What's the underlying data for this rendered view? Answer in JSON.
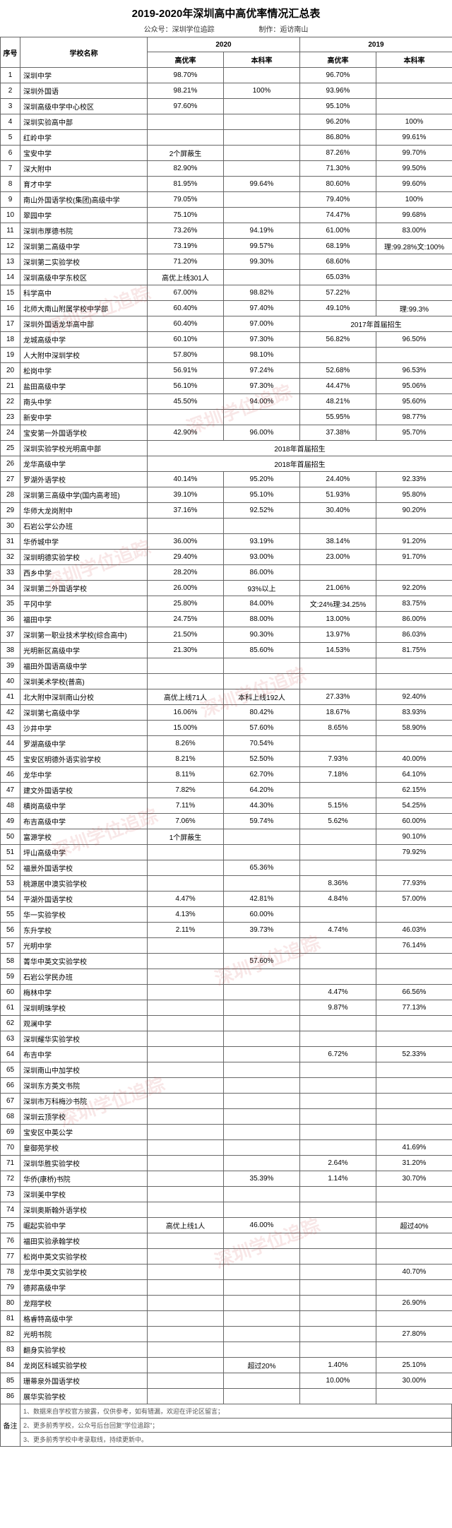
{
  "title": "2019-2020年深圳高中高优率情况汇总表",
  "subline": {
    "left": "公众号：深圳学位追踪",
    "right": "制作：逅访南山"
  },
  "headers": {
    "seq": "序号",
    "school": "学校名称",
    "y2020": "2020",
    "y2019": "2019",
    "gyl": "高优率",
    "bkl": "本科率"
  },
  "footer": {
    "label": "备注",
    "notes": [
      "1、数据来自学校官方披露，仅供参考，如有错漏，欢迎在评论区留言；",
      "2、更多前秀学校，公众号后台回复\"学位追踪\"；",
      "3、更多前秀学校中考录取线，持续更新中。"
    ]
  },
  "watermarks": [
    "深圳学位追踪",
    "深圳学位追踪",
    "深圳学位追踪",
    "深圳学位追踪",
    "深圳学位追踪",
    "深圳学位追踪",
    "深圳学位追踪",
    "深圳学位追踪"
  ],
  "rows": [
    {
      "n": 1,
      "s": "深圳中学",
      "a": "98.70%",
      "b": "",
      "c": "96.70%",
      "d": ""
    },
    {
      "n": 2,
      "s": "深圳外国语",
      "a": "98.21%",
      "b": "100%",
      "c": "93.96%",
      "d": ""
    },
    {
      "n": 3,
      "s": "深圳高级中学中心校区",
      "a": "97.60%",
      "b": "",
      "c": "95.10%",
      "d": ""
    },
    {
      "n": 4,
      "s": "深圳实验高中部",
      "a": "",
      "b": "",
      "c": "96.20%",
      "d": "100%"
    },
    {
      "n": 5,
      "s": "红岭中学",
      "a": "",
      "b": "",
      "c": "86.80%",
      "d": "99.61%"
    },
    {
      "n": 6,
      "s": "宝安中学",
      "a": "2个屏蔽生",
      "b": "",
      "c": "87.26%",
      "d": "99.70%"
    },
    {
      "n": 7,
      "s": "深大附中",
      "a": "82.90%",
      "b": "",
      "c": "71.30%",
      "d": "99.50%"
    },
    {
      "n": 8,
      "s": "育才中学",
      "a": "81.95%",
      "b": "99.64%",
      "c": "80.60%",
      "d": "99.60%"
    },
    {
      "n": 9,
      "s": "南山外国语学校(集团)高级中学",
      "a": "79.05%",
      "b": "",
      "c": "79.40%",
      "d": "100%"
    },
    {
      "n": 10,
      "s": "翠园中学",
      "a": "75.10%",
      "b": "",
      "c": "74.47%",
      "d": "99.68%"
    },
    {
      "n": 11,
      "s": "深圳市厚德书院",
      "a": "73.26%",
      "b": "94.19%",
      "c": "61.00%",
      "d": "83.00%"
    },
    {
      "n": 12,
      "s": "深圳第二高级中学",
      "a": "73.19%",
      "b": "99.57%",
      "c": "68.19%",
      "d": "理:99.28%文:100%"
    },
    {
      "n": 13,
      "s": "深圳第二实验学校",
      "a": "71.20%",
      "b": "99.30%",
      "c": "68.60%",
      "d": ""
    },
    {
      "n": 14,
      "s": "深圳高级中学东校区",
      "a": "高优上线301人",
      "b": "",
      "c": "65.03%",
      "d": ""
    },
    {
      "n": 15,
      "s": "科学高中",
      "a": "67.00%",
      "b": "98.82%",
      "c": "57.22%",
      "d": ""
    },
    {
      "n": 16,
      "s": "北师大南山附属学校中学部",
      "a": "60.40%",
      "b": "97.40%",
      "c": "49.10%",
      "d": "理:99.3%"
    },
    {
      "n": 17,
      "s": "深圳外国语龙华高中部",
      "a": "60.40%",
      "b": "97.00%",
      "c": "2017年首届招生",
      "d": "",
      "merge_cd": true
    },
    {
      "n": 18,
      "s": "龙城高级中学",
      "a": "60.10%",
      "b": "97.30%",
      "c": "56.82%",
      "d": "96.50%"
    },
    {
      "n": 19,
      "s": "人大附中深圳学校",
      "a": "57.80%",
      "b": "98.10%",
      "c": "",
      "d": ""
    },
    {
      "n": 20,
      "s": "松岗中学",
      "a": "56.91%",
      "b": "97.24%",
      "c": "52.68%",
      "d": "96.53%"
    },
    {
      "n": 21,
      "s": "盐田高级中学",
      "a": "56.10%",
      "b": "97.30%",
      "c": "44.47%",
      "d": "95.06%"
    },
    {
      "n": 22,
      "s": "南头中学",
      "a": "45.50%",
      "b": "94.00%",
      "c": "48.21%",
      "d": "95.60%"
    },
    {
      "n": 23,
      "s": "新安中学",
      "a": "",
      "b": "",
      "c": "55.95%",
      "d": "98.77%"
    },
    {
      "n": 24,
      "s": "宝安第一外国语学校",
      "a": "42.90%",
      "b": "96.00%",
      "c": "37.38%",
      "d": "95.70%"
    },
    {
      "n": 25,
      "s": "深圳实验学校光明高中部",
      "a": "2018年首届招生",
      "b": "",
      "c": "",
      "d": "",
      "merge_all": true
    },
    {
      "n": 26,
      "s": "龙华高级中学",
      "a": "2018年首届招生",
      "b": "",
      "c": "",
      "d": "",
      "merge_all": true
    },
    {
      "n": 27,
      "s": "罗湖外语学校",
      "a": "40.14%",
      "b": "95.20%",
      "c": "24.40%",
      "d": "92.33%"
    },
    {
      "n": 28,
      "s": "深圳第三高级中学(国内高考班)",
      "a": "39.10%",
      "b": "95.10%",
      "c": "51.93%",
      "d": "95.80%"
    },
    {
      "n": 29,
      "s": "华师大龙岗附中",
      "a": "37.16%",
      "b": "92.52%",
      "c": "30.40%",
      "d": "90.20%"
    },
    {
      "n": 30,
      "s": "石岩公学公办班",
      "a": "",
      "b": "",
      "c": "",
      "d": ""
    },
    {
      "n": 31,
      "s": "华侨城中学",
      "a": "36.00%",
      "b": "93.19%",
      "c": "38.14%",
      "d": "91.20%"
    },
    {
      "n": 32,
      "s": "深圳明德实验学校",
      "a": "29.40%",
      "b": "93.00%",
      "c": "23.00%",
      "d": "91.70%"
    },
    {
      "n": 33,
      "s": "西乡中学",
      "a": "28.20%",
      "b": "86.00%",
      "c": "",
      "d": ""
    },
    {
      "n": 34,
      "s": "深圳第二外国语学校",
      "a": "26.00%",
      "b": "93%以上",
      "c": "21.06%",
      "d": "92.20%"
    },
    {
      "n": 35,
      "s": "平冈中学",
      "a": "25.80%",
      "b": "84.00%",
      "c": "文:24%理:34.25%",
      "d": "83.75%"
    },
    {
      "n": 36,
      "s": "福田中学",
      "a": "24.75%",
      "b": "88.00%",
      "c": "13.00%",
      "d": "86.00%"
    },
    {
      "n": 37,
      "s": "深圳第一职业技术学校(综合高中)",
      "a": "21.50%",
      "b": "90.30%",
      "c": "13.97%",
      "d": "86.03%"
    },
    {
      "n": 38,
      "s": "光明新区高级中学",
      "a": "21.30%",
      "b": "85.60%",
      "c": "14.53%",
      "d": "81.75%"
    },
    {
      "n": 39,
      "s": "福田外国语高级中学",
      "a": "",
      "b": "",
      "c": "",
      "d": ""
    },
    {
      "n": 40,
      "s": "深圳美术学校(普高)",
      "a": "",
      "b": "",
      "c": "",
      "d": ""
    },
    {
      "n": 41,
      "s": "北大附中深圳南山分校",
      "a": "高优上线71人",
      "b": "本科上线192人",
      "c": "27.33%",
      "d": "92.40%"
    },
    {
      "n": 42,
      "s": "深圳第七高级中学",
      "a": "16.06%",
      "b": "80.42%",
      "c": "18.67%",
      "d": "83.93%"
    },
    {
      "n": 43,
      "s": "沙井中学",
      "a": "15.00%",
      "b": "57.60%",
      "c": "8.65%",
      "d": "58.90%"
    },
    {
      "n": 44,
      "s": "罗湖高级中学",
      "a": "8.26%",
      "b": "70.54%",
      "c": "",
      "d": ""
    },
    {
      "n": 45,
      "s": "宝安区明德外语实验学校",
      "a": "8.21%",
      "b": "52.50%",
      "c": "7.93%",
      "d": "40.00%"
    },
    {
      "n": 46,
      "s": "龙华中学",
      "a": "8.11%",
      "b": "62.70%",
      "c": "7.18%",
      "d": "64.10%"
    },
    {
      "n": 47,
      "s": "建文外国语学校",
      "a": "7.82%",
      "b": "64.20%",
      "c": "",
      "d": "62.15%"
    },
    {
      "n": 48,
      "s": "横岗高级中学",
      "a": "7.11%",
      "b": "44.30%",
      "c": "5.15%",
      "d": "54.25%"
    },
    {
      "n": 49,
      "s": "布吉高级中学",
      "a": "7.06%",
      "b": "59.74%",
      "c": "5.62%",
      "d": "60.00%"
    },
    {
      "n": 50,
      "s": "富源学校",
      "a": "1个屏蔽生",
      "b": "",
      "c": "",
      "d": "90.10%"
    },
    {
      "n": 51,
      "s": "坪山高级中学",
      "a": "",
      "b": "",
      "c": "",
      "d": "79.92%"
    },
    {
      "n": 52,
      "s": "福景外国语学校",
      "a": "",
      "b": "65.36%",
      "c": "",
      "d": ""
    },
    {
      "n": 53,
      "s": "桃源居中澳实验学校",
      "a": "",
      "b": "",
      "c": "8.36%",
      "d": "77.93%"
    },
    {
      "n": 54,
      "s": "平湖外国语学校",
      "a": "4.47%",
      "b": "42.81%",
      "c": "4.84%",
      "d": "57.00%"
    },
    {
      "n": 55,
      "s": "华一实验学校",
      "a": "4.13%",
      "b": "60.00%",
      "c": "",
      "d": ""
    },
    {
      "n": 56,
      "s": "东升学校",
      "a": "2.11%",
      "b": "39.73%",
      "c": "4.74%",
      "d": "46.03%"
    },
    {
      "n": 57,
      "s": "光明中学",
      "a": "",
      "b": "",
      "c": "",
      "d": "76.14%"
    },
    {
      "n": 58,
      "s": "菁华中英文实验学校",
      "a": "",
      "b": "57.60%",
      "c": "",
      "d": ""
    },
    {
      "n": 59,
      "s": "石岩公学民办班",
      "a": "",
      "b": "",
      "c": "",
      "d": ""
    },
    {
      "n": 60,
      "s": "梅林中学",
      "a": "",
      "b": "",
      "c": "4.47%",
      "d": "66.56%"
    },
    {
      "n": 61,
      "s": "深圳明珠学校",
      "a": "",
      "b": "",
      "c": "9.87%",
      "d": "77.13%"
    },
    {
      "n": 62,
      "s": "观澜中学",
      "a": "",
      "b": "",
      "c": "",
      "d": ""
    },
    {
      "n": 63,
      "s": "深圳耀华实验学校",
      "a": "",
      "b": "",
      "c": "",
      "d": ""
    },
    {
      "n": 64,
      "s": "布吉中学",
      "a": "",
      "b": "",
      "c": "6.72%",
      "d": "52.33%"
    },
    {
      "n": 65,
      "s": "深圳南山中加学校",
      "a": "",
      "b": "",
      "c": "",
      "d": ""
    },
    {
      "n": 66,
      "s": "深圳东方英文书院",
      "a": "",
      "b": "",
      "c": "",
      "d": ""
    },
    {
      "n": 67,
      "s": "深圳市万科梅沙书院",
      "a": "",
      "b": "",
      "c": "",
      "d": ""
    },
    {
      "n": 68,
      "s": "深圳云顶学校",
      "a": "",
      "b": "",
      "c": "",
      "d": ""
    },
    {
      "n": 69,
      "s": "宝安区中英公学",
      "a": "",
      "b": "",
      "c": "",
      "d": ""
    },
    {
      "n": 70,
      "s": "皇御苑学校",
      "a": "",
      "b": "",
      "c": "",
      "d": "41.69%"
    },
    {
      "n": 71,
      "s": "深圳华胜实验学校",
      "a": "",
      "b": "",
      "c": "2.64%",
      "d": "31.20%"
    },
    {
      "n": 72,
      "s": "华侨(康桥)书院",
      "a": "",
      "b": "35.39%",
      "c": "1.14%",
      "d": "30.70%"
    },
    {
      "n": 73,
      "s": "深圳美中学校",
      "a": "",
      "b": "",
      "c": "",
      "d": ""
    },
    {
      "n": 74,
      "s": "深圳奥斯翰外语学校",
      "a": "",
      "b": "",
      "c": "",
      "d": ""
    },
    {
      "n": 75,
      "s": "崛起实验中学",
      "a": "高优上线1人",
      "b": "46.00%",
      "c": "",
      "d": "超过40%"
    },
    {
      "n": 76,
      "s": "福田实验承翰学校",
      "a": "",
      "b": "",
      "c": "",
      "d": ""
    },
    {
      "n": 77,
      "s": "松岗中英文实验学校",
      "a": "",
      "b": "",
      "c": "",
      "d": ""
    },
    {
      "n": 78,
      "s": "龙华中英文实验学校",
      "a": "",
      "b": "",
      "c": "",
      "d": "40.70%"
    },
    {
      "n": 79,
      "s": "德邦高级中学",
      "a": "",
      "b": "",
      "c": "",
      "d": ""
    },
    {
      "n": 80,
      "s": "龙翔学校",
      "a": "",
      "b": "",
      "c": "",
      "d": "26.90%"
    },
    {
      "n": 81,
      "s": "格睿特高级中学",
      "a": "",
      "b": "",
      "c": "",
      "d": ""
    },
    {
      "n": 82,
      "s": "光明书院",
      "a": "",
      "b": "",
      "c": "",
      "d": "27.80%"
    },
    {
      "n": 83,
      "s": "翻身实验学校",
      "a": "",
      "b": "",
      "c": "",
      "d": ""
    },
    {
      "n": 84,
      "s": "龙岗区科城实验学校",
      "a": "",
      "b": "超过20%",
      "c": "1.40%",
      "d": "25.10%"
    },
    {
      "n": 85,
      "s": "珊蒂泉外国语学校",
      "a": "",
      "b": "",
      "c": "10.00%",
      "d": "30.00%"
    },
    {
      "n": 86,
      "s": "展华实验学校",
      "a": "",
      "b": "",
      "c": "",
      "d": ""
    }
  ]
}
